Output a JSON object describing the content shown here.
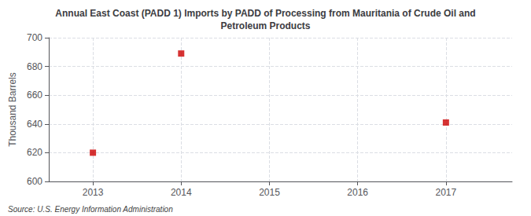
{
  "chart_data": {
    "type": "scatter",
    "title": "Annual East Coast (PADD 1) Imports by PADD of Processing from Mauritania of Crude Oil and\nPetroleum Products",
    "y_label": "Thousand Barrels",
    "source": "Source: U.S. Energy Information Administration",
    "x": [
      2013,
      2014,
      2017
    ],
    "values": [
      620,
      689,
      641
    ],
    "color": "#cc0000",
    "marker": "square",
    "xlim": [
      2012.5,
      2017.75
    ],
    "xticks": [
      2013,
      2014,
      2015,
      2016,
      2017
    ],
    "ylim": [
      600,
      700
    ],
    "yticks": [
      600,
      620,
      640,
      660,
      680,
      700
    ],
    "grid": true
  }
}
